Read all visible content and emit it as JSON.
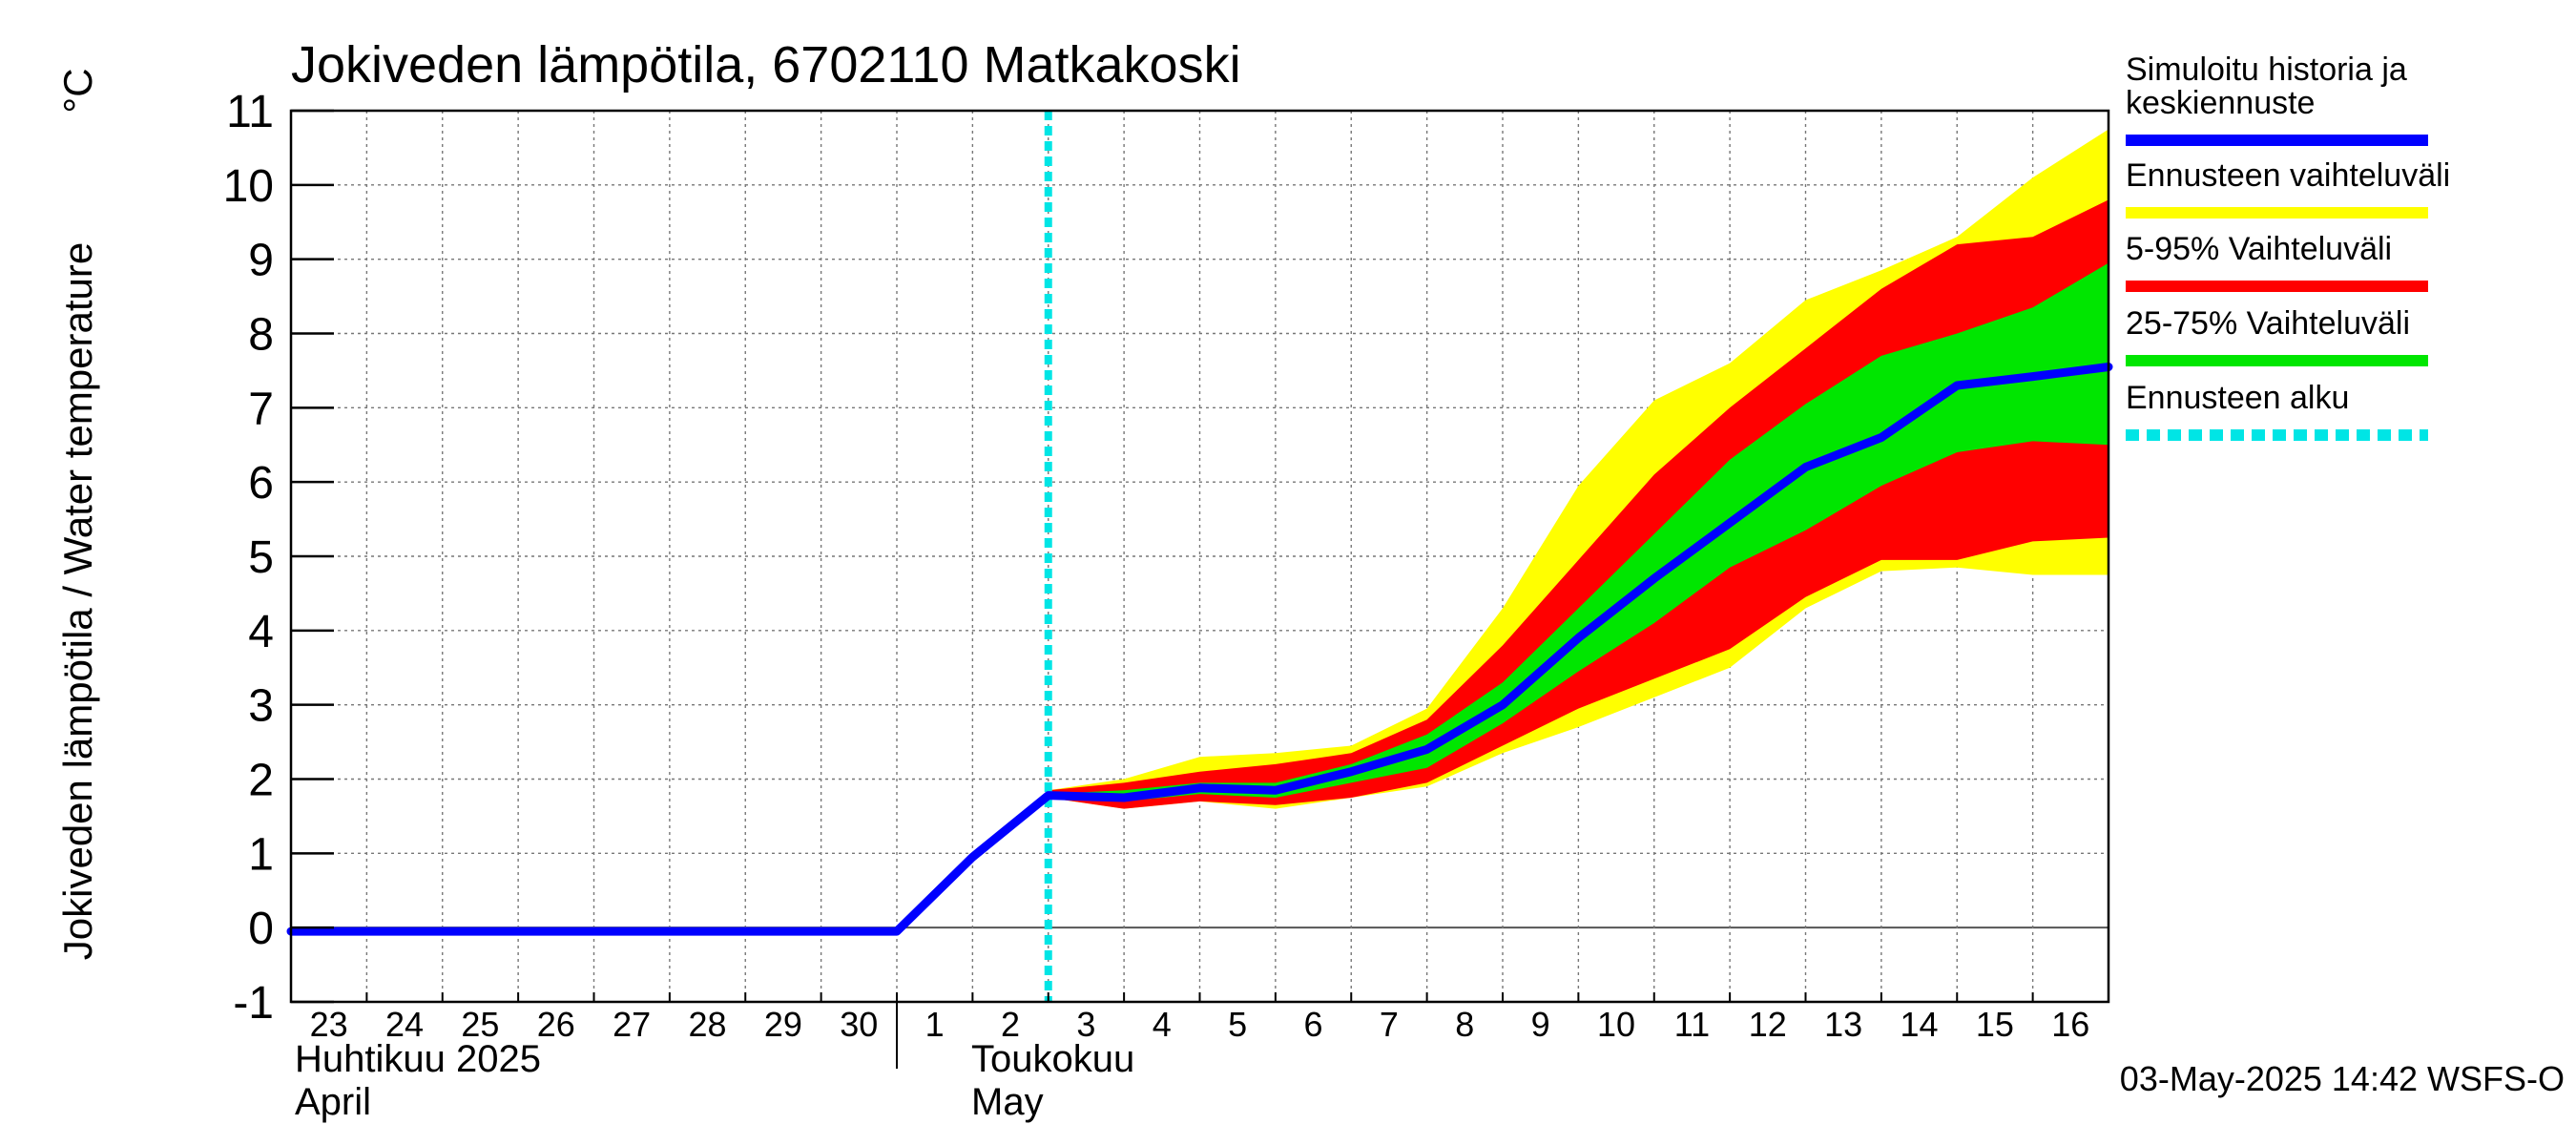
{
  "chart_data": {
    "type": "area",
    "title": "Jokiveden lämpötila, 6702110 Matkakoski",
    "ylabel": "Jokiveden lämpötila / Water temperature",
    "yunit": "°C",
    "ylim": [
      -1,
      11
    ],
    "yticks": [
      -1,
      0,
      1,
      2,
      3,
      4,
      5,
      6,
      7,
      8,
      9,
      10,
      11
    ],
    "xlim": [
      "2025-04-23",
      "2025-05-17"
    ],
    "grid": true,
    "day_ticks": [
      "23",
      "24",
      "25",
      "26",
      "27",
      "28",
      "29",
      "30",
      "1",
      "2",
      "3",
      "4",
      "5",
      "6",
      "7",
      "8",
      "9",
      "10",
      "11",
      "12",
      "13",
      "14",
      "15",
      "16"
    ],
    "months": [
      {
        "fi": "Huhtikuu  2025",
        "en": "April",
        "start": "2025-04-23"
      },
      {
        "fi": "Toukokuu",
        "en": "May",
        "start": "2025-05-01"
      }
    ],
    "forecast_start": "2025-05-03",
    "x": [
      "2025-04-23",
      "2025-04-24",
      "2025-04-25",
      "2025-04-26",
      "2025-04-27",
      "2025-04-28",
      "2025-04-29",
      "2025-04-30",
      "2025-05-01",
      "2025-05-02",
      "2025-05-03",
      "2025-05-04",
      "2025-05-05",
      "2025-05-06",
      "2025-05-07",
      "2025-05-08",
      "2025-05-09",
      "2025-05-10",
      "2025-05-11",
      "2025-05-12",
      "2025-05-13",
      "2025-05-14",
      "2025-05-15",
      "2025-05-16",
      "2025-05-17"
    ],
    "median": [
      -0.05,
      -0.05,
      -0.05,
      -0.05,
      -0.05,
      -0.05,
      -0.05,
      -0.05,
      -0.05,
      0.95,
      1.78,
      1.75,
      1.88,
      1.85,
      2.1,
      2.4,
      3.0,
      3.9,
      4.7,
      5.45,
      6.2,
      6.6,
      7.3,
      7.42,
      7.55
    ],
    "forecast_x": [
      "2025-05-03",
      "2025-05-04",
      "2025-05-05",
      "2025-05-06",
      "2025-05-07",
      "2025-05-08",
      "2025-05-09",
      "2025-05-10",
      "2025-05-11",
      "2025-05-12",
      "2025-05-13",
      "2025-05-14",
      "2025-05-15",
      "2025-05-16",
      "2025-05-17"
    ],
    "bands": [
      {
        "name": "Ennusteen vaihteluväli",
        "color": "#ffff00",
        "low": [
          1.75,
          1.6,
          1.7,
          1.6,
          1.75,
          1.9,
          2.35,
          2.7,
          3.1,
          3.5,
          4.3,
          4.8,
          4.85,
          4.75,
          4.75
        ],
        "high": [
          1.85,
          2.0,
          2.3,
          2.35,
          2.45,
          2.95,
          4.3,
          5.95,
          7.1,
          7.6,
          8.45,
          8.85,
          9.3,
          10.1,
          10.75
        ]
      },
      {
        "name": "5-95% Vaihteluväli",
        "color": "#ff0000",
        "low": [
          1.75,
          1.6,
          1.7,
          1.65,
          1.75,
          1.95,
          2.45,
          2.95,
          3.35,
          3.75,
          4.45,
          4.95,
          4.95,
          5.2,
          5.25
        ],
        "high": [
          1.85,
          1.95,
          2.1,
          2.2,
          2.35,
          2.8,
          3.8,
          4.95,
          6.1,
          7.0,
          7.8,
          8.6,
          9.2,
          9.3,
          9.8
        ]
      },
      {
        "name": "25-75% Vaihteluväli",
        "color": "#00e600",
        "low": [
          1.75,
          1.7,
          1.8,
          1.75,
          1.95,
          2.15,
          2.75,
          3.45,
          4.1,
          4.85,
          5.35,
          5.95,
          6.4,
          6.55,
          6.5
        ],
        "high": [
          1.8,
          1.85,
          1.95,
          1.95,
          2.2,
          2.6,
          3.3,
          4.3,
          5.3,
          6.3,
          7.05,
          7.7,
          8.0,
          8.35,
          8.95
        ]
      }
    ],
    "legend": {
      "placement": "right",
      "items": [
        {
          "label": "Simuloitu historia ja keskiennuste",
          "lines": [
            "Simuloitu historia ja",
            "keskiennuste"
          ],
          "color": "#0000ff",
          "style": "solid"
        },
        {
          "label": "Ennusteen vaihteluväli",
          "lines": [
            "Ennusteen vaihteluväli"
          ],
          "color": "#ffff00",
          "style": "solid"
        },
        {
          "label": "5-95% Vaihteluväli",
          "lines": [
            "5-95% Vaihteluväli"
          ],
          "color": "#ff0000",
          "style": "solid"
        },
        {
          "label": "25-75% Vaihteluväli",
          "lines": [
            "25-75% Vaihteluväli"
          ],
          "color": "#00e600",
          "style": "solid"
        },
        {
          "label": "Ennusteen alku",
          "lines": [
            "Ennusteen alku"
          ],
          "color": "#00e5e5",
          "style": "dotted"
        }
      ]
    },
    "footer": "03-May-2025 14:42 WSFS-O"
  }
}
